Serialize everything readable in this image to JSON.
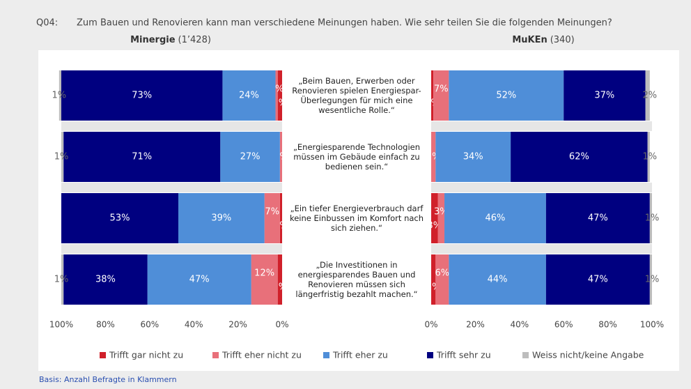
{
  "question_label": "Q04:",
  "question": "Zum Bauen und Renovieren kann man verschiedene Meinungen haben. Wie sehr teilen Sie die folgenden Meinungen?",
  "footnote": "Basis: Anzahl Befragte in Klammern",
  "chart_data": [
    {
      "type": "stacked_bar_horizontal",
      "title": "Minergie",
      "subtitle": "(1’428)",
      "x_reversed": true,
      "categories": [
        "„Beim Bauen, Erwerben oder Renovieren spielen Energiespar-Überlegungen für mich eine wesentliche Rolle.“",
        "„Energiesparende Technologien müssen im Gebäude einfach zu bedienen sein.“",
        "„Ein tiefer Energieverbrauch darf keine Einbussen im Komfort nach sich ziehen.“",
        "„Die Investitionen in energiesparendes Bauen und Renovieren müssen sich längerfristig bezahlt machen.“"
      ],
      "xlim": [
        0,
        100
      ],
      "xticks": [
        {
          "value": 0,
          "label": "0%"
        },
        {
          "value": 20,
          "label": "20%"
        },
        {
          "value": 40,
          "label": "40%"
        },
        {
          "value": 60,
          "label": "60%"
        },
        {
          "value": 80,
          "label": "80%"
        },
        {
          "value": 100,
          "label": "100%"
        }
      ],
      "series": [
        {
          "name": "Trifft gar nicht zu",
          "color": "#d0202a",
          "values": [
            2,
            0,
            1,
            2
          ],
          "value_labels": [
            "2%",
            null,
            "1%",
            "2%"
          ]
        },
        {
          "name": "Trifft eher nicht zu",
          "color": "#e8707a",
          "values": [
            1,
            1,
            7,
            12
          ],
          "value_labels": [
            "1%",
            "1%",
            "7%",
            "12%"
          ]
        },
        {
          "name": "Trifft eher zu",
          "color": "#4f8ed8",
          "values": [
            24,
            27,
            39,
            47
          ],
          "value_labels": [
            "24%",
            "27%",
            "39%",
            "47%"
          ]
        },
        {
          "name": "Trifft sehr zu",
          "color": "#000080",
          "values": [
            73,
            71,
            53,
            38
          ],
          "value_labels": [
            "73%",
            "71%",
            "53%",
            "38%"
          ]
        },
        {
          "name": "Weiss nicht/keine Angabe",
          "color": "#bdbdbd",
          "values": [
            1,
            1,
            0,
            1
          ],
          "value_labels": [
            "1%",
            "1%",
            null,
            "1%"
          ]
        }
      ]
    },
    {
      "type": "stacked_bar_horizontal",
      "title": "MuKEn",
      "subtitle": "(340)",
      "x_reversed": false,
      "xlim": [
        0,
        100
      ],
      "xticks": [
        {
          "value": 0,
          "label": "0%"
        },
        {
          "value": 20,
          "label": "20%"
        },
        {
          "value": 40,
          "label": "40%"
        },
        {
          "value": 60,
          "label": "60%"
        },
        {
          "value": 80,
          "label": "80%"
        },
        {
          "value": 100,
          "label": "100%"
        }
      ],
      "series": [
        {
          "color": "#d0202a",
          "values": [
            1,
            0,
            3,
            2
          ],
          "value_labels": [
            "1%",
            null,
            "3%",
            "2%"
          ]
        },
        {
          "color": "#e8707a",
          "values": [
            7,
            2,
            3,
            6
          ],
          "value_labels": [
            "7%",
            "2%",
            "3%",
            "6%"
          ]
        },
        {
          "color": "#4f8ed8",
          "values": [
            52,
            34,
            46,
            44
          ],
          "value_labels": [
            "52%",
            "34%",
            "46%",
            "44%"
          ]
        },
        {
          "color": "#000080",
          "values": [
            37,
            62,
            47,
            47
          ],
          "value_labels": [
            "37%",
            "62%",
            "47%",
            "47%"
          ]
        },
        {
          "color": "#bdbdbd",
          "values": [
            2,
            1,
            1,
            1
          ],
          "value_labels": [
            "2%",
            "1%",
            "1%",
            "1%"
          ]
        }
      ]
    }
  ]
}
